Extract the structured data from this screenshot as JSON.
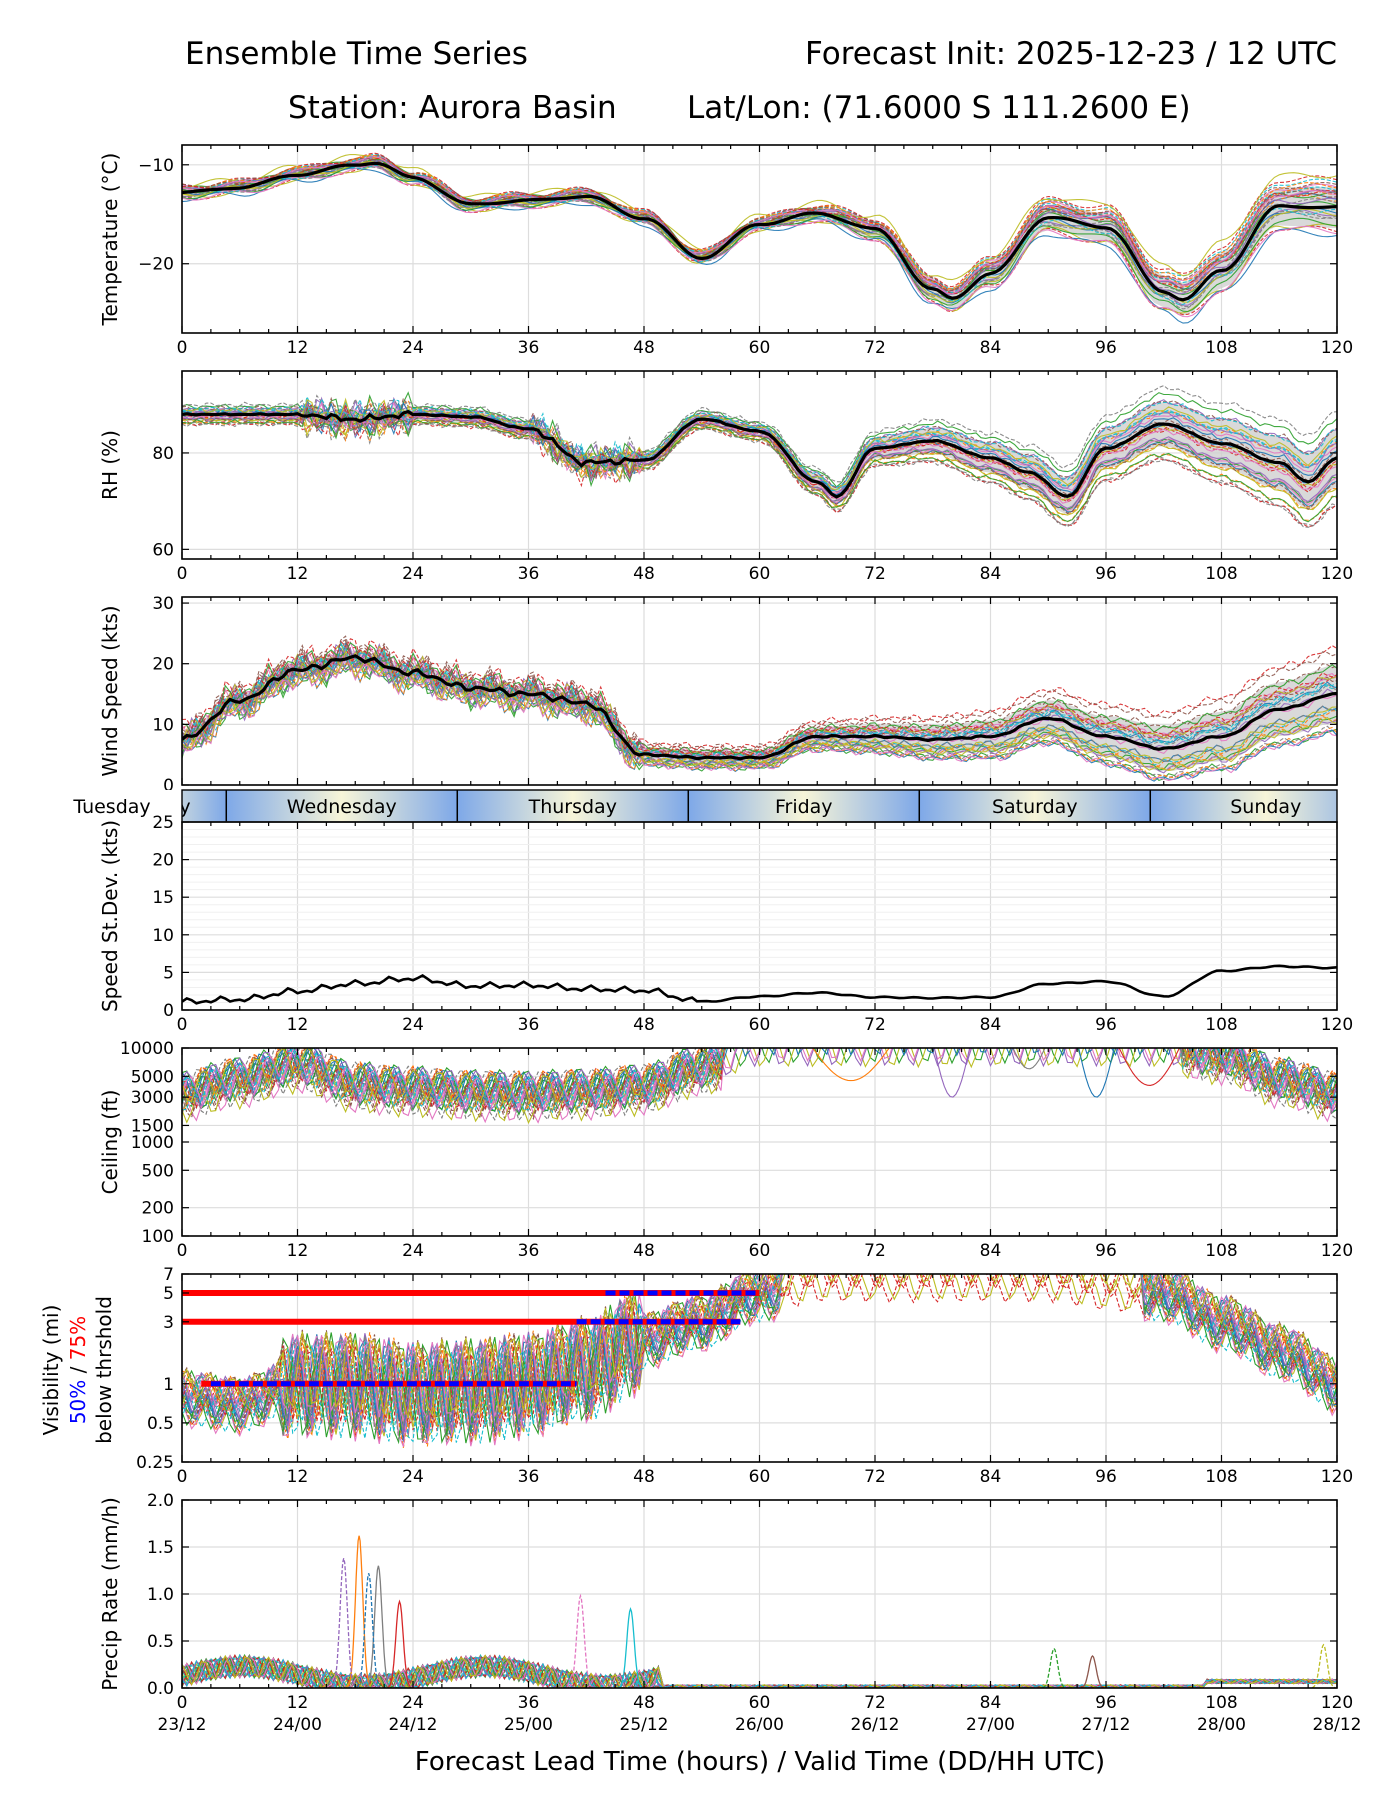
{
  "header": {
    "title_left": "Ensemble Time Series",
    "title_right": "Forecast Init: 2025-12-23 / 12 UTC",
    "station": "Station: Aurora Basin",
    "latlon": "Lat/Lon: (71.6000 S 111.2600 E)"
  },
  "xaxis": {
    "ticks": [
      0,
      12,
      24,
      36,
      48,
      60,
      72,
      84,
      96,
      108,
      120
    ],
    "valid_labels": [
      "23/12",
      "24/00",
      "24/12",
      "25/00",
      "25/12",
      "26/00",
      "26/12",
      "27/00",
      "27/12",
      "28/00",
      "28/12"
    ],
    "xlabel": "Forecast Lead Time (hours) / Valid Time (DD/HH UTC)"
  },
  "day_band": {
    "days": [
      "Tuesday",
      "Wednesday",
      "Thursday",
      "Friday",
      "Saturday",
      "Sunday"
    ],
    "day_start_hours": [
      -12,
      4.6,
      28.6,
      52.6,
      76.6,
      100.6
    ],
    "colors": {
      "blue": "#7ea8e8",
      "cream": "#f7f5d8"
    }
  },
  "vis_threshold_legend": {
    "line1": "Visibility (mi)",
    "pct50": "50%",
    "sep": " / ",
    "pct75": "75%",
    "line3": "below thrshold",
    "color50": "#0000ff",
    "color75": "#ff0000"
  },
  "member_colors": [
    "#1f77b4",
    "#ff7f0e",
    "#2ca02c",
    "#d62728",
    "#9467bd",
    "#8c564b",
    "#e377c2",
    "#7f7f7f",
    "#bcbd22",
    "#17becf"
  ],
  "chart_data": [
    {
      "id": "temp",
      "type": "line",
      "ylabel": "Temperature (°C)",
      "ylim": [
        -27,
        -8
      ],
      "yticks": [
        -10,
        -20
      ],
      "ytick_labels": [
        "−10",
        "−20"
      ],
      "mean": {
        "x": [
          0,
          6,
          12,
          18,
          20,
          24,
          30,
          36,
          42,
          48,
          54,
          60,
          66,
          72,
          78,
          80,
          84,
          90,
          96,
          102,
          104,
          108,
          114,
          120
        ],
        "y": [
          -12.8,
          -12.3,
          -11,
          -10,
          -9.8,
          -11.3,
          -14,
          -13.6,
          -13.2,
          -15.4,
          -19.4,
          -16,
          -14.9,
          -16.5,
          -22.6,
          -23.5,
          -21,
          -15.3,
          -16.3,
          -22.8,
          -23.6,
          -20.7,
          -14.2,
          -14.3
        ]
      },
      "spread_mean": 0.8,
      "spread_max": 3.5
    },
    {
      "id": "rh",
      "type": "line",
      "ylabel": "RH (%)",
      "ylim": [
        58,
        97
      ],
      "yticks": [
        60,
        80
      ],
      "ytick_labels": [
        "60",
        "80"
      ],
      "mean": {
        "x": [
          0,
          12,
          18,
          24,
          30,
          36,
          42,
          48,
          54,
          60,
          66,
          68,
          72,
          78,
          84,
          88,
          92,
          96,
          102,
          108,
          114,
          117,
          120
        ],
        "y": [
          88,
          88,
          87,
          88,
          87.5,
          85,
          78,
          78.5,
          87,
          84.5,
          74,
          71,
          81,
          82.5,
          79,
          76,
          71,
          81,
          86,
          82,
          78,
          74,
          79
        ]
      },
      "spread_mean": 2,
      "spread_max": 10
    },
    {
      "id": "wind",
      "type": "line",
      "ylabel": "Wind Speed (kts)",
      "ylim": [
        0,
        31
      ],
      "yticks": [
        0,
        10,
        20,
        30
      ],
      "ytick_labels": [
        "0",
        "10",
        "20",
        "30"
      ],
      "mean": {
        "x": [
          0,
          6,
          12,
          18,
          24,
          30,
          36,
          42,
          48,
          54,
          60,
          66,
          72,
          78,
          84,
          90,
          96,
          102,
          108,
          114,
          120
        ],
        "y": [
          7.5,
          14,
          19,
          21,
          18.5,
          16,
          15,
          13.5,
          5,
          4.5,
          4.5,
          8,
          8,
          7.5,
          8,
          11,
          8,
          6,
          8,
          12.5,
          15
        ]
      },
      "spread_mean": 2,
      "spread_max": 8
    },
    {
      "id": "sd",
      "type": "line",
      "ylabel": "Speed St.Dev. (kts)",
      "ylim": [
        0,
        25
      ],
      "yticks": [
        0,
        5,
        10,
        15,
        20,
        25
      ],
      "ytick_labels": [
        "0",
        "5",
        "10",
        "15",
        "20",
        "25"
      ],
      "mean": {
        "x": [
          0,
          6,
          12,
          18,
          24,
          30,
          36,
          42,
          48,
          54,
          60,
          66,
          72,
          78,
          84,
          90,
          96,
          102,
          108,
          114,
          120
        ],
        "y": [
          1.1,
          1.4,
          2.5,
          3.5,
          4.2,
          3.2,
          3.3,
          2.8,
          2.6,
          1.1,
          1.8,
          2.3,
          1.7,
          1.6,
          1.7,
          3.5,
          3.8,
          1.8,
          5.2,
          5.8,
          5.6
        ]
      }
    },
    {
      "id": "ceil",
      "type": "line",
      "ylabel": "Ceiling (ft)",
      "scale": "log",
      "ylim": [
        100,
        10000
      ],
      "yticks": [
        100,
        200,
        500,
        1000,
        1500,
        3000,
        5000,
        10000
      ],
      "ytick_labels": [
        "100",
        "200",
        "500",
        "1000",
        "1500",
        "3000",
        "5000",
        "10000"
      ],
      "member_base": {
        "x": [
          0,
          6,
          12,
          18,
          24,
          30,
          36,
          42,
          48,
          54,
          60,
          66,
          72,
          78,
          84,
          90,
          96,
          102,
          108,
          114,
          120
        ],
        "y": [
          3200,
          4500,
          6500,
          4000,
          3600,
          3300,
          3200,
          3400,
          3800,
          6000,
          10000,
          10000,
          10000,
          10000,
          10000,
          10000,
          10000,
          10000,
          8000,
          4500,
          3200
        ]
      }
    },
    {
      "id": "vis",
      "type": "line",
      "ylabel": "Visibility (mi)",
      "scale": "log",
      "ylim": [
        0.25,
        7
      ],
      "yticks": [
        0.25,
        0.5,
        1,
        3,
        5,
        7
      ],
      "ytick_labels": [
        "0.25",
        "0.5",
        "1",
        "3",
        "5",
        "7"
      ],
      "member_base": {
        "x": [
          0,
          6,
          12,
          18,
          24,
          30,
          36,
          42,
          48,
          54,
          60,
          66,
          72,
          78,
          84,
          90,
          96,
          102,
          108,
          114,
          120
        ],
        "y": [
          0.8,
          0.7,
          1,
          1,
          0.85,
          0.9,
          1,
          1.3,
          2.2,
          3,
          5,
          7,
          7,
          7,
          7,
          7,
          6,
          5,
          3,
          1.8,
          1
        ]
      },
      "thresholds": [
        {
          "level": 5,
          "red_x": [
            0,
            60
          ],
          "blue_x": [
            44,
            60
          ]
        },
        {
          "level": 3,
          "red_x": [
            0,
            58
          ],
          "blue_x": [
            41,
            58
          ]
        },
        {
          "level": 1,
          "red_x": [
            2,
            41
          ],
          "blue_x": [
            3,
            41
          ]
        }
      ]
    },
    {
      "id": "precip",
      "type": "line",
      "ylabel": "Precip Rate (mm/h)",
      "ylim": [
        0,
        2
      ],
      "yticks": [
        0,
        0.5,
        1,
        1.5,
        2
      ],
      "ytick_labels": [
        "0.0",
        "0.5",
        "1.0",
        "1.5",
        "2.0"
      ],
      "peaks": [
        {
          "x": 18.4,
          "y": 1.62
        },
        {
          "x": 16.8,
          "y": 1.38
        },
        {
          "x": 20.4,
          "y": 1.3
        },
        {
          "x": 19.4,
          "y": 1.22
        },
        {
          "x": 22.6,
          "y": 0.92
        },
        {
          "x": 41.4,
          "y": 0.98
        },
        {
          "x": 46.6,
          "y": 0.84
        },
        {
          "x": 90.6,
          "y": 0.42
        },
        {
          "x": 94.6,
          "y": 0.34
        },
        {
          "x": 118.6,
          "y": 0.46
        }
      ]
    }
  ]
}
